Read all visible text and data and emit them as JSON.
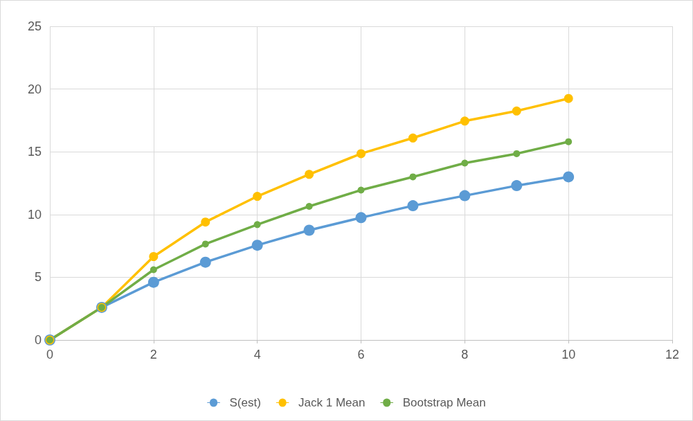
{
  "chart_data": {
    "type": "line",
    "x": [
      0,
      1,
      2,
      3,
      4,
      5,
      6,
      7,
      8,
      9,
      10
    ],
    "series": [
      {
        "name": "S(est)",
        "color": "#5b9bd5",
        "values": [
          0,
          2.6,
          4.6,
          6.2,
          7.55,
          8.75,
          9.75,
          10.7,
          11.5,
          12.3,
          13.0
        ]
      },
      {
        "name": "Jack 1 Mean",
        "color": "#ffc000",
        "values": [
          0,
          2.6,
          6.65,
          9.4,
          11.45,
          13.2,
          14.85,
          16.1,
          17.45,
          18.25,
          19.25
        ]
      },
      {
        "name": "Bootstrap Mean",
        "color": "#70ad47",
        "values": [
          0,
          2.6,
          5.6,
          7.65,
          9.2,
          10.65,
          11.95,
          13.0,
          14.1,
          14.85,
          15.8
        ]
      }
    ],
    "xlim": [
      0,
      12
    ],
    "xticks": [
      0,
      2,
      4,
      6,
      8,
      10,
      12
    ],
    "ylim": [
      0,
      25
    ],
    "yticks": [
      0,
      5,
      10,
      15,
      20,
      25
    ],
    "grid": true,
    "legend": "bottom",
    "marker": "circle",
    "line_style": "solid"
  }
}
